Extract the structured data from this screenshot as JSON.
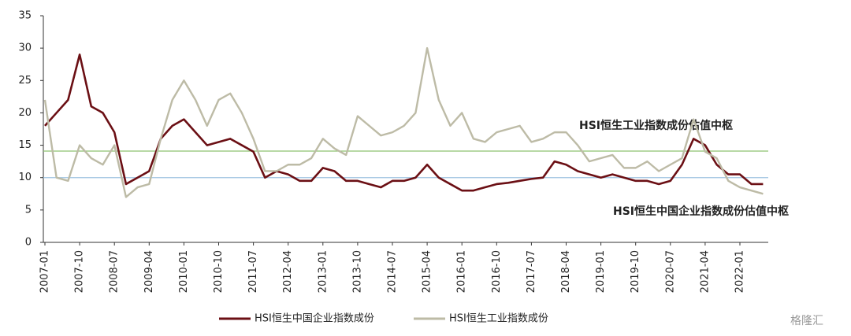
{
  "chart_data": {
    "type": "line",
    "categories": [
      "2007-01",
      null,
      null,
      "2007-10",
      null,
      null,
      "2008-07",
      null,
      null,
      "2009-04",
      null,
      null,
      "2010-01",
      null,
      null,
      "2010-10",
      null,
      null,
      "2011-07",
      null,
      null,
      "2012-04",
      null,
      null,
      "2013-01",
      null,
      null,
      "2013-10",
      null,
      null,
      "2014-07",
      null,
      null,
      "2015-04",
      null,
      null,
      "2016-01",
      null,
      null,
      "2016-10",
      null,
      null,
      "2017-07",
      null,
      null,
      "2018-04",
      null,
      null,
      "2019-01",
      null,
      null,
      "2019-10",
      null,
      null,
      "2020-07",
      null,
      null,
      "2021-04",
      null,
      null,
      "2022-01",
      null,
      null
    ],
    "series": [
      {
        "name": "HSI恒生中国企业指数成份",
        "color": "#6b0f14",
        "values": [
          18,
          20,
          22,
          29,
          21,
          20,
          17,
          9,
          10,
          11,
          16,
          18,
          19,
          17,
          15,
          15.5,
          16,
          15,
          14,
          10,
          11,
          10.5,
          9.5,
          9.5,
          11.5,
          11,
          9.5,
          9.5,
          9,
          8.5,
          9.5,
          9.5,
          10,
          12,
          10,
          9,
          8,
          8,
          8.5,
          9,
          9.2,
          9.5,
          9.8,
          10,
          12.5,
          12,
          11,
          10.5,
          10,
          10.5,
          10,
          9.5,
          9.5,
          9,
          9.5,
          12,
          16,
          15,
          12,
          10.5,
          10.5,
          9,
          9
        ]
      },
      {
        "name": "HSI恒生工业指数成份",
        "color": "#bdbba6",
        "values": [
          22,
          10,
          9.5,
          15,
          13,
          12,
          15,
          7,
          8.5,
          9,
          16,
          22,
          25,
          22,
          18,
          22,
          23,
          20,
          16,
          11,
          11,
          12,
          12,
          13,
          16,
          14.5,
          13.5,
          19.5,
          18,
          16.5,
          17,
          18,
          20,
          30,
          22,
          18,
          20,
          16,
          15.5,
          17,
          17.5,
          18,
          15.5,
          16,
          17,
          17,
          15,
          12.5,
          13,
          13.5,
          11.5,
          11.5,
          12.5,
          11,
          12,
          13,
          19,
          14,
          13,
          9.5,
          8.5,
          8,
          7.5
        ]
      }
    ],
    "reference_lines": [
      {
        "value": 14.1,
        "color": "#8dc26f",
        "label": "HSI恒生工业指数成份估值中枢"
      },
      {
        "value": 10,
        "color": "#9ec3e0",
        "label": "HSI恒生中国企业指数成份估值中枢"
      }
    ],
    "ylim": [
      0,
      35
    ],
    "yticks": [
      0,
      5,
      10,
      15,
      20,
      25,
      30,
      35
    ],
    "watermark": "格隆汇"
  }
}
